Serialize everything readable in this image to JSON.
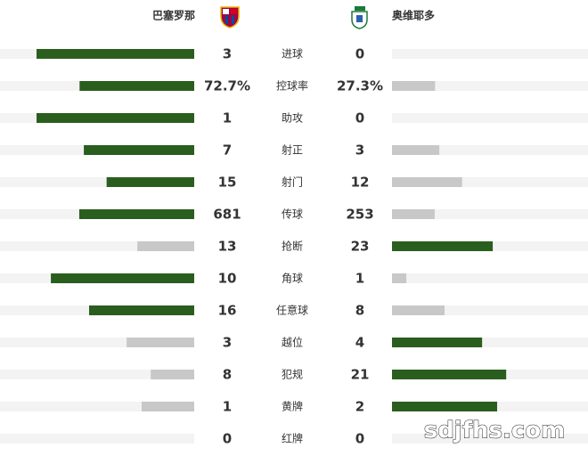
{
  "header": {
    "home_team": "巴塞罗那",
    "away_team": "奥维耶多"
  },
  "rows": [
    {
      "label": "进球",
      "home": 3,
      "away": 0
    },
    {
      "label": "控球率",
      "home": {
        "value": 72.7,
        "label": "72.7%"
      },
      "away": {
        "value": 27.3,
        "label": "27.3%"
      }
    },
    {
      "label": "助攻",
      "home": 1,
      "away": 0
    },
    {
      "label": "射正",
      "home": 7,
      "away": 3
    },
    {
      "label": "射门",
      "home": 15,
      "away": 12
    },
    {
      "label": "传球",
      "home": 681,
      "away": 253
    },
    {
      "label": "抢断",
      "home": 13,
      "away": 23
    },
    {
      "label": "角球",
      "home": 10,
      "away": 1
    },
    {
      "label": "任意球",
      "home": 16,
      "away": 8
    },
    {
      "label": "越位",
      "home": 3,
      "away": 4
    },
    {
      "label": "犯规",
      "home": 8,
      "away": 21
    },
    {
      "label": "黄牌",
      "home": 1,
      "away": 2
    },
    {
      "label": "红牌",
      "home": 0,
      "away": 0
    }
  ],
  "watermark": "sdjfhs.com"
}
